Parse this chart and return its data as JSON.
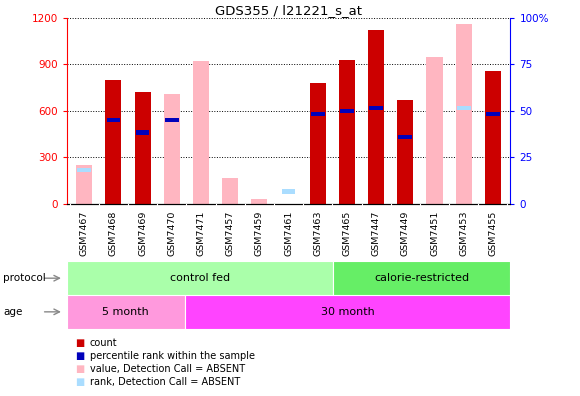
{
  "title": "GDS355 / l21221_s_at",
  "samples": [
    "GSM7467",
    "GSM7468",
    "GSM7469",
    "GSM7470",
    "GSM7471",
    "GSM7457",
    "GSM7459",
    "GSM7461",
    "GSM7463",
    "GSM7465",
    "GSM7447",
    "GSM7449",
    "GSM7451",
    "GSM7453",
    "GSM7455"
  ],
  "red_bars": [
    0,
    800,
    720,
    0,
    0,
    0,
    0,
    0,
    780,
    930,
    1120,
    670,
    0,
    0,
    860
  ],
  "pink_bars": [
    250,
    800,
    720,
    710,
    920,
    170,
    30,
    0,
    780,
    930,
    1120,
    670,
    950,
    1160,
    860
  ],
  "blue_bars_val": [
    0,
    540,
    460,
    540,
    0,
    0,
    0,
    0,
    580,
    600,
    620,
    430,
    0,
    0,
    580
  ],
  "light_blue_bars_val": [
    220,
    0,
    0,
    0,
    0,
    0,
    0,
    80,
    0,
    0,
    0,
    0,
    0,
    620,
    0
  ],
  "ylim_left": [
    0,
    1200
  ],
  "ylim_right": [
    0,
    100
  ],
  "yticks_left": [
    0,
    300,
    600,
    900,
    1200
  ],
  "yticks_right": [
    0,
    25,
    50,
    75,
    100
  ],
  "cf_count": 9,
  "cr_count": 6,
  "five_month_count": 4,
  "thirty_month_count": 11,
  "protocol_cf_color": "#AAFFAA",
  "protocol_cr_color": "#66EE66",
  "age_five_color": "#FF99DD",
  "age_thirty_color": "#FF44FF",
  "red_color": "#CC0000",
  "pink_color": "#FFB6C1",
  "blue_color": "#0000BB",
  "light_blue_color": "#AADDFF",
  "bg_color": "#DDDDDD",
  "legend_labels": [
    "count",
    "percentile rank within the sample",
    "value, Detection Call = ABSENT",
    "rank, Detection Call = ABSENT"
  ]
}
